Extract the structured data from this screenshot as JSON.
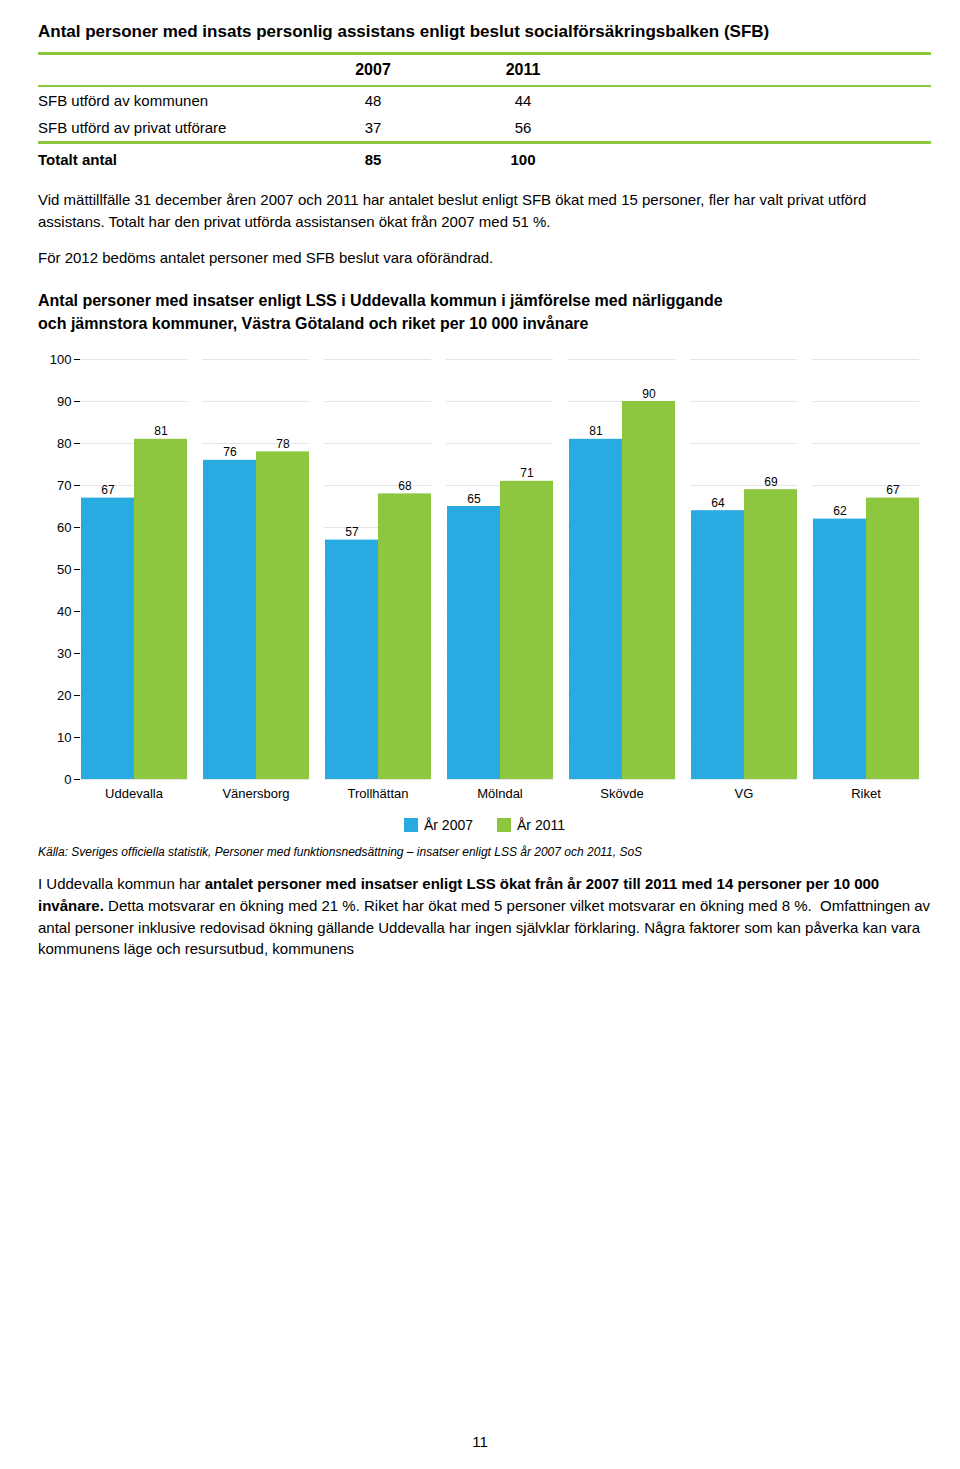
{
  "page_title": "Antal personer med insats personlig assistans enligt beslut socialförsäkringsbalken (SFB)",
  "rule_color": "#8DC63F",
  "table": {
    "headers": [
      "2007",
      "2011"
    ],
    "rows": [
      [
        "SFB utförd av kommunen",
        "48",
        "44"
      ],
      [
        "SFB utförd av privat utförare",
        "37",
        "56"
      ]
    ],
    "total": [
      "Totalt antal",
      "85",
      "100"
    ]
  },
  "paragraph1": "Vid mättillfälle 31 december åren 2007 och 2011 har antalet beslut enligt SFB ökat med 15 personer, fler har valt privat utförd assistans. Totalt har den privat utförda assistansen ökat från 2007 med 51 %.",
  "paragraph2": "För 2012 bedöms antalet personer med SFB beslut vara oförändrad.",
  "chart_data": {
    "type": "bar",
    "title": "Antal personer med insatser enligt LSS i Uddevalla kommun i jämförelse med närliggande",
    "subtitle": "och jämnstora kommuner, Västra Götaland och riket per 10 000 invånare",
    "categories": [
      "Uddevalla",
      "Vänersborg",
      "Trollhättan",
      "Mölndal",
      "Skövde",
      "VG",
      "Riket"
    ],
    "series": [
      {
        "name": "År 2007",
        "color": "#29ABE2",
        "values": [
          67,
          76,
          57,
          65,
          81,
          64,
          62
        ]
      },
      {
        "name": "År 2011",
        "color": "#8DC63F",
        "values": [
          81,
          78,
          68,
          71,
          90,
          69,
          67
        ]
      }
    ],
    "ylim": [
      0,
      100
    ],
    "yticks": [
      0,
      10,
      20,
      30,
      40,
      50,
      60,
      70,
      80,
      90,
      100
    ],
    "grid": true,
    "data_labels": true,
    "legend": "bottom"
  },
  "source_text": "Källa: Sveriges officiella statistik, Personer med funktionsnedsättning – insatser enligt LSS år 2007 och 2011, SoS",
  "paragraph3": [
    {
      "text": "I Uddevalla kommun har ",
      "bold": false
    },
    {
      "text": "antalet personer med insatser enligt LSS ökat från år 2007 till 2011 med 14 personer per 10 000 invånare.",
      "bold": true
    },
    {
      "text": " Detta motsvarar en ökning med 21 %. Riket har ökat med 5 personer vilket motsvarar en ökning med 8 %.  Omfattningen av antal personer inklusive redovisad ökning gällande Uddevalla har ingen självklar förklaring. Några faktorer som kan påverka kan vara kommunens läge och resursutbud, kommunens",
      "bold": false
    }
  ],
  "page_number": "11"
}
